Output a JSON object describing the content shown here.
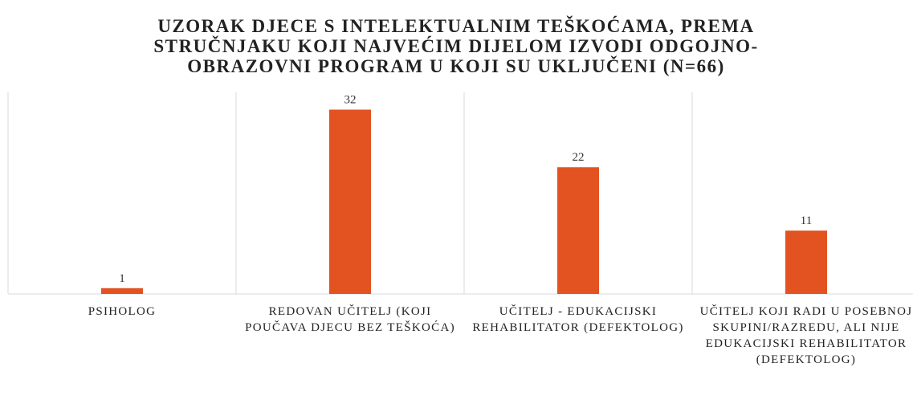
{
  "chart_data": {
    "type": "bar",
    "title": "UZORAK DJECE S INTELEKTUALNIM TEŠKOĆAMA, PREMA STRUČNJAKU KOJI NAJVEĆIM DIJELOM IZVODI ODGOJNO-OBRAZOVNI PROGRAM U KOJI SU UKLJUČENI (N=66)",
    "categories": [
      "PSIHOLOG",
      "REDOVAN UČITELJ (KOJI POUČAVA DJECU BEZ TEŠKOĆA)",
      "UČITELJ - EDUKACIJSKI REHABILITATOR (DEFEKTOLOG)",
      "UČITELJ KOJI RADI U POSEBNOJ SKUPINI/RAZREDU, ALI NIJE EDUKACIJSKI REHABILITATOR (DEFEKTOLOG)"
    ],
    "values": [
      1,
      32,
      22,
      11
    ],
    "color": "#e35322",
    "ylim": [
      0,
      35
    ]
  }
}
